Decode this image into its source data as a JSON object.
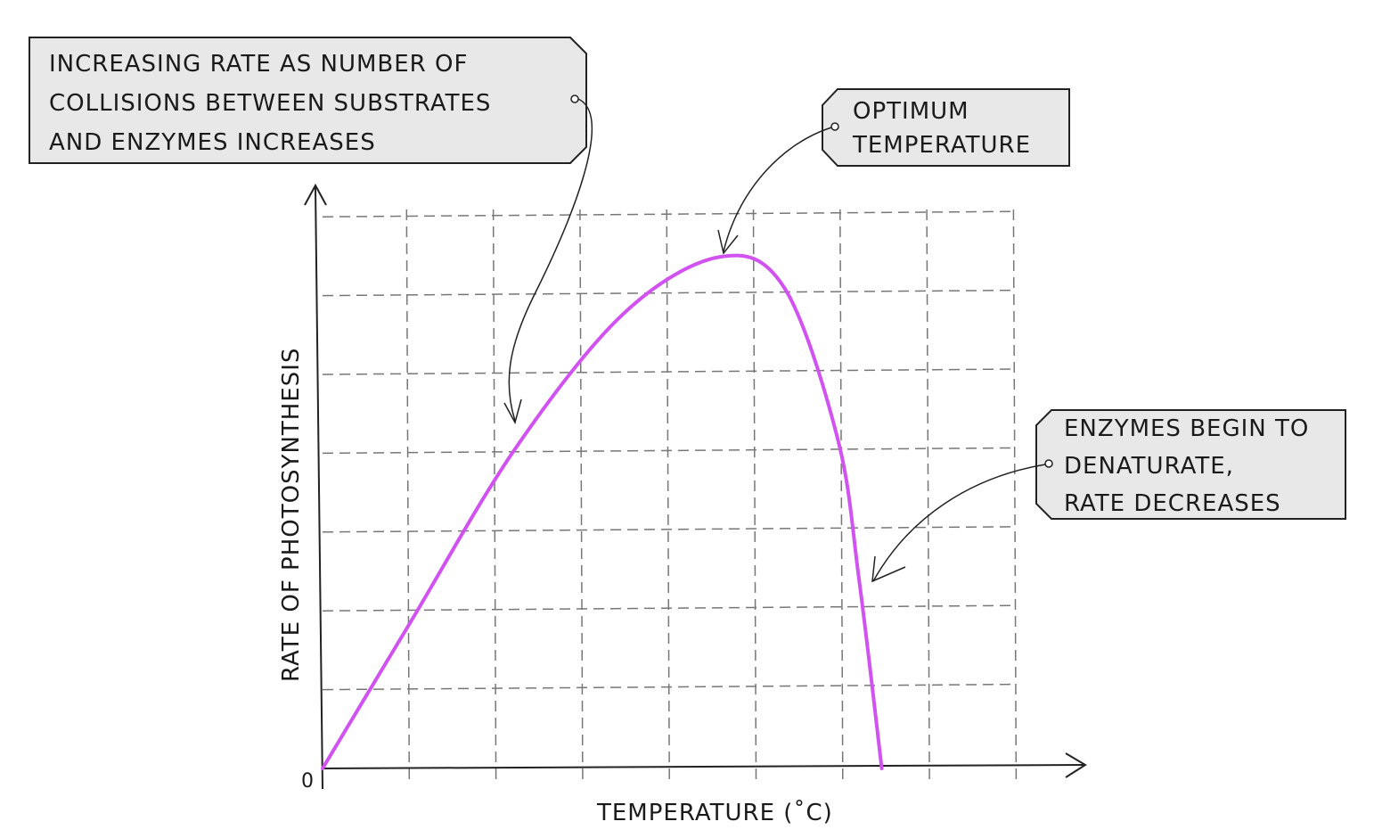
{
  "chart_data": {
    "type": "line",
    "title": "",
    "xlabel": "TEMPERATURE (˚C)",
    "ylabel": "RATE OF PHOTOSYNTHESIS",
    "origin_label": "0",
    "grid": true,
    "grid_style": "dashed",
    "xlim": [
      0,
      8
    ],
    "ylim": [
      0,
      7
    ],
    "series": [
      {
        "color": "#d152f0",
        "x": [
          0,
          1.0,
          2.23,
          3.47,
          4.58,
          5.32,
          5.94,
          6.19,
          6.45
        ],
        "y": [
          0,
          1.83,
          4.07,
          5.77,
          6.49,
          6.11,
          4.19,
          2.38,
          0
        ]
      }
    ],
    "annotations": [
      {
        "lines": [
          "INCREASING  RATE  AS  NUMBER  OF",
          "COLLISIONS  BETWEEN  SUBSTRATES",
          "AND  ENZYMES  INCREASES"
        ]
      },
      {
        "lines": [
          "OPTIMUM",
          "TEMPERATURE"
        ]
      },
      {
        "lines": [
          "ENZYMES  BEGIN  TO",
          "DENATURATE,",
          "RATE  DECREASES"
        ]
      }
    ]
  }
}
